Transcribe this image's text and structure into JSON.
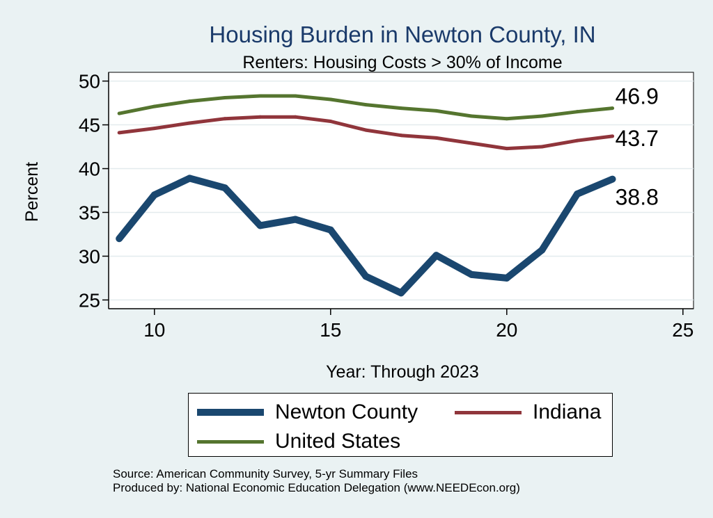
{
  "chart_data": {
    "type": "line",
    "title": "Housing Burden in Newton County, IN",
    "subtitle": "Renters: Housing Costs > 30% of Income",
    "xlabel": "Year: Through 2023",
    "ylabel": "Percent",
    "xlim": [
      8.7,
      25.3
    ],
    "ylim": [
      24,
      51
    ],
    "xticks": [
      10,
      15,
      20,
      25
    ],
    "yticks": [
      25,
      30,
      35,
      40,
      45,
      50
    ],
    "grid": true,
    "legend_position": "bottom",
    "x": [
      9,
      10,
      11,
      12,
      13,
      14,
      15,
      16,
      17,
      18,
      19,
      20,
      21,
      22,
      23
    ],
    "series": [
      {
        "name": "Newton County",
        "color": "#1a476f",
        "values": [
          32.0,
          37.0,
          38.9,
          37.8,
          33.5,
          34.2,
          33.0,
          27.7,
          25.8,
          30.1,
          27.9,
          27.5,
          30.7,
          37.1,
          38.8
        ],
        "end_label": "38.8"
      },
      {
        "name": "Indiana",
        "color": "#90353b",
        "values": [
          44.1,
          44.6,
          45.2,
          45.7,
          45.9,
          45.9,
          45.4,
          44.4,
          43.8,
          43.5,
          42.9,
          42.3,
          42.5,
          43.2,
          43.7
        ],
        "end_label": "43.7"
      },
      {
        "name": "United States",
        "color": "#55752f",
        "values": [
          46.3,
          47.1,
          47.7,
          48.1,
          48.3,
          48.3,
          47.9,
          47.3,
          46.9,
          46.6,
          46.0,
          45.7,
          46.0,
          46.5,
          46.9
        ],
        "end_label": "46.9"
      }
    ]
  },
  "notes": {
    "source": "Source: American Community Survey, 5-yr Summary Files",
    "produced": "Produced by: National Economic Education Delegation (www.NEEDEcon.org)"
  }
}
